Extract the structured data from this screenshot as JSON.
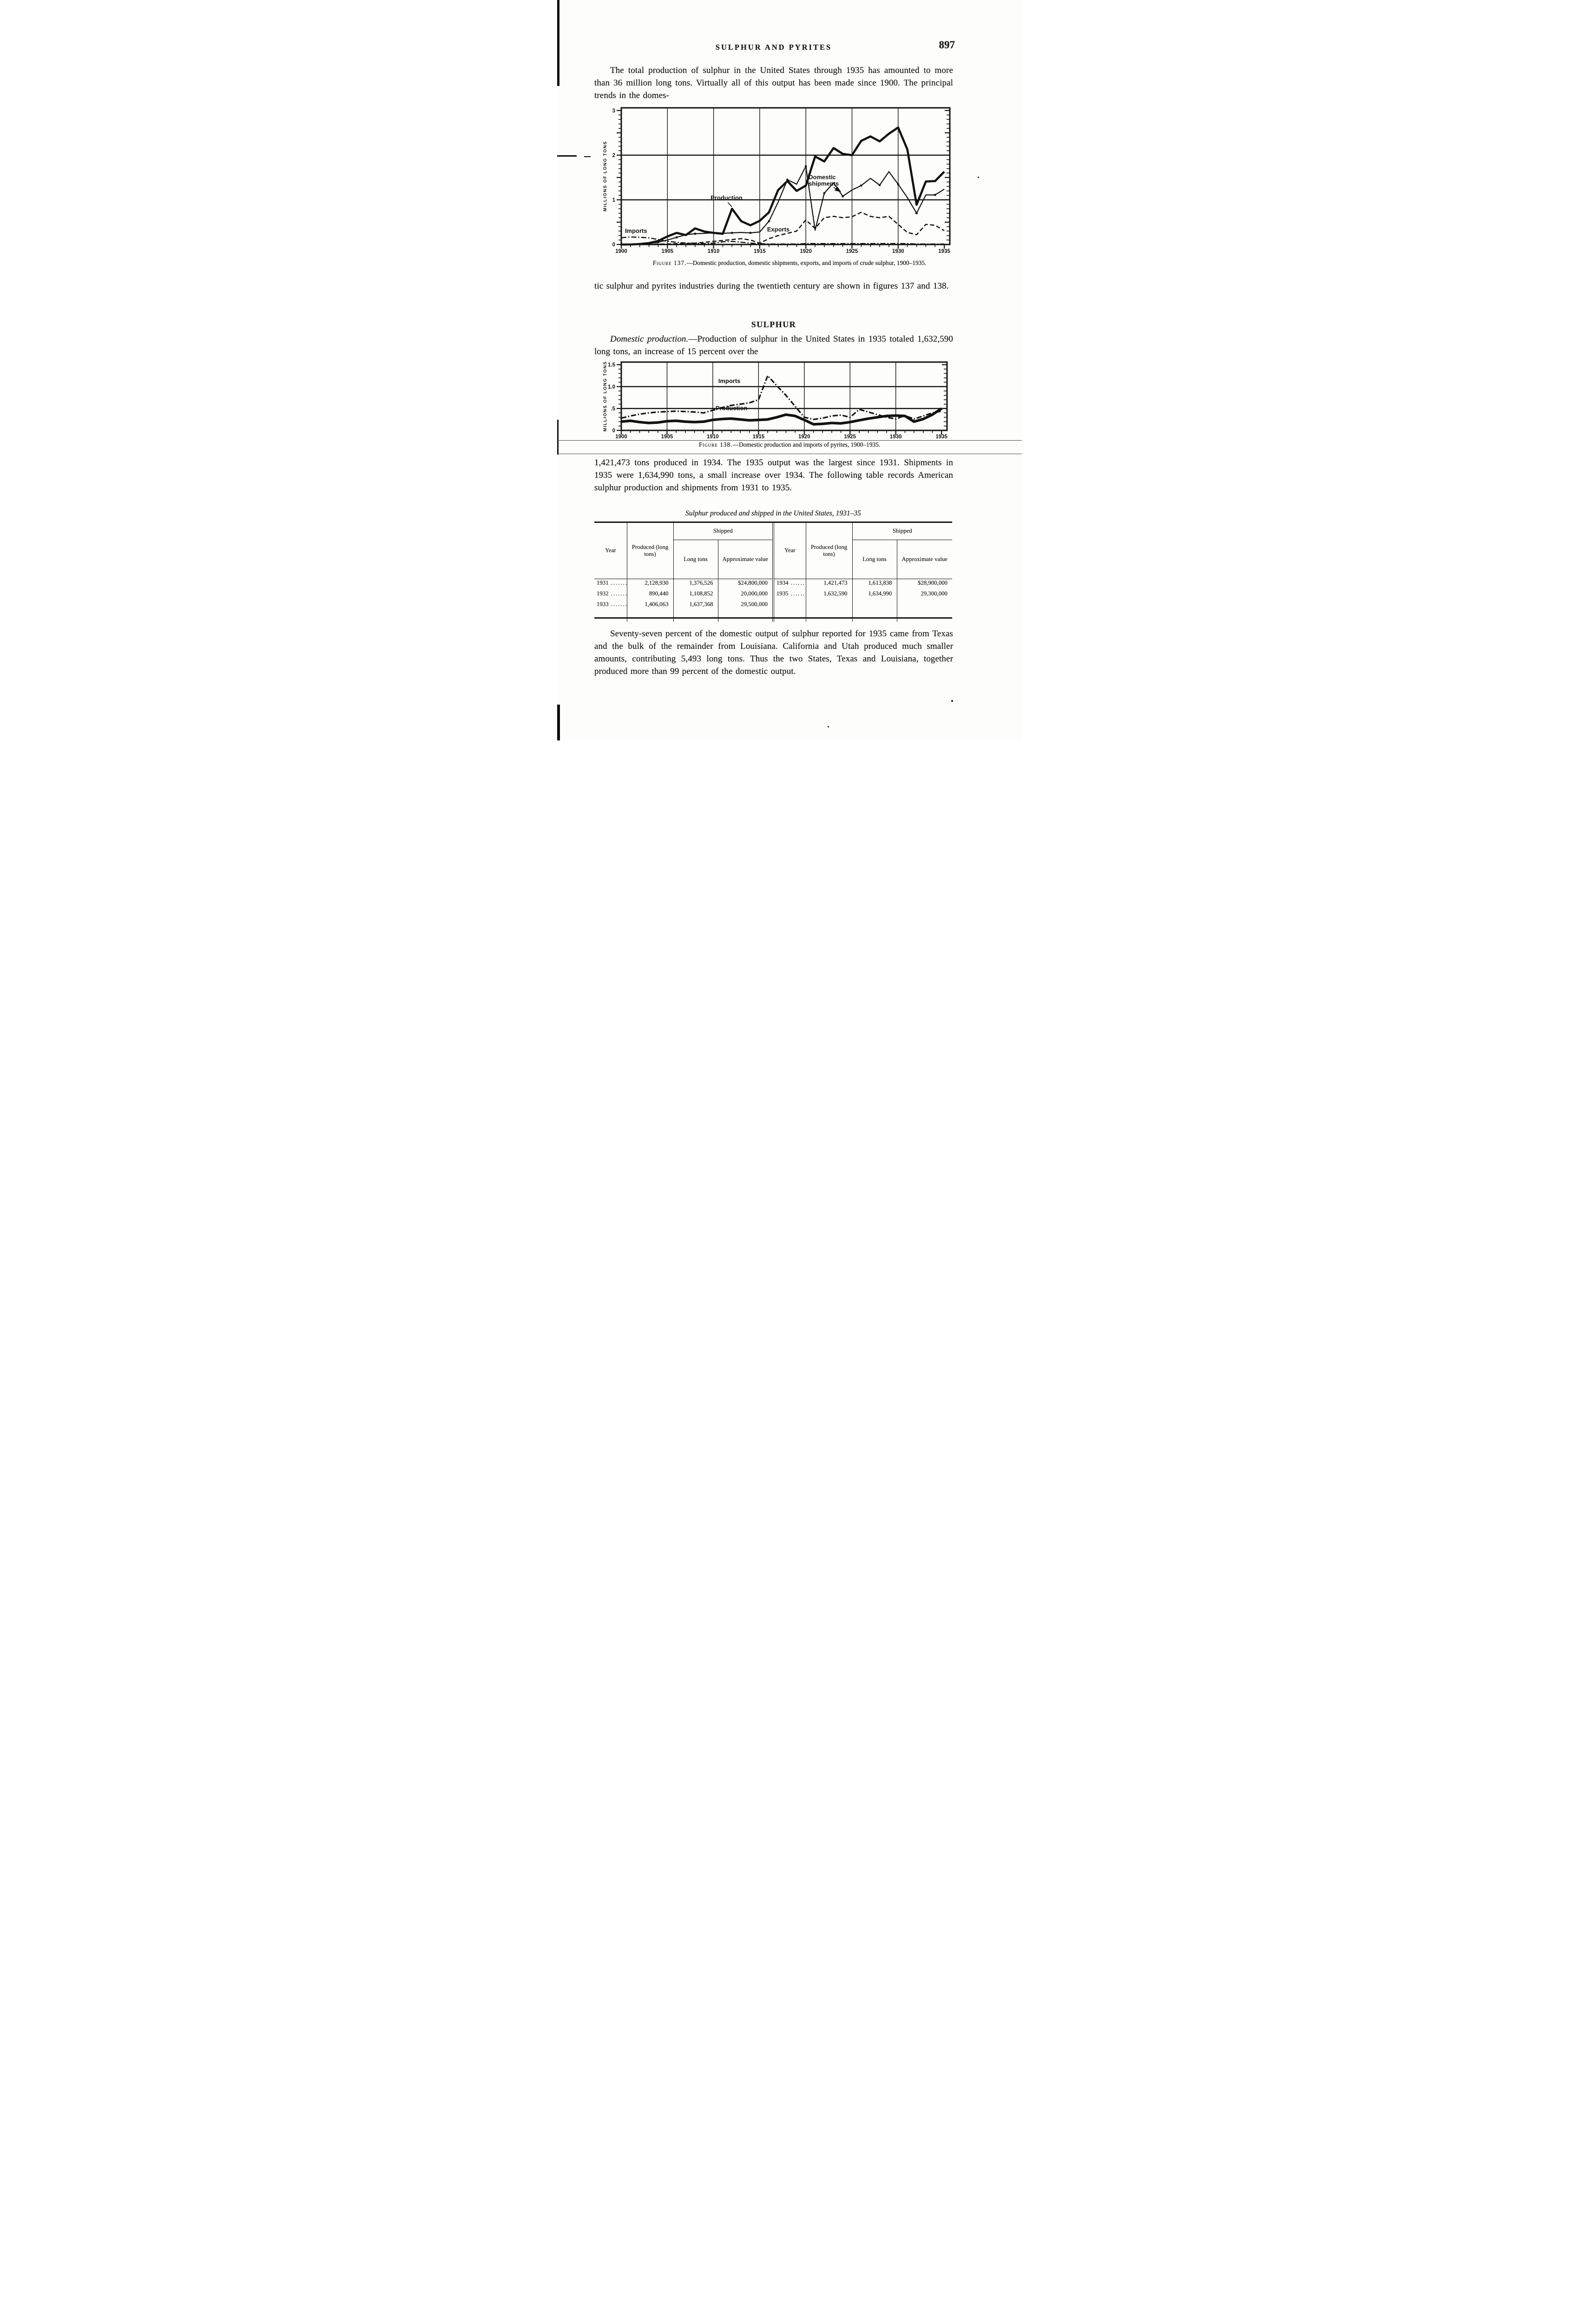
{
  "header": {
    "title": "SULPHUR AND PYRITES",
    "page_number": "897"
  },
  "paragraphs": {
    "p1": "The total production of sulphur in the United States through 1935 has amounted to more than 36 million long tons. Virtually all of this output has been made since 1900. The principal trends in the domes-",
    "p2": "tic sulphur and pyrites industries during the twentieth century are shown in figures 137 and 138.",
    "section_heading": "SULPHUR",
    "p3_lead": "Domestic production.",
    "p3_rest": "—Production of sulphur in the United States in 1935 totaled 1,632,590 long tons, an increase of 15 percent over the",
    "p4": "1,421,473 tons produced in 1934. The 1935 output was the largest since 1931. Shipments in 1935 were 1,634,990 tons, a small increase over 1934. The following table records American sulphur production and shipments from 1931 to 1935.",
    "p5": "Seventy-seven percent of the domestic output of sulphur reported for 1935 came from Texas and the bulk of the remainder from Louisiana. California and Utah produced much smaller amounts, contributing 5,493 long tons. Thus the two States, Texas and Louisiana, together produced more than 99 percent of the domestic output."
  },
  "figures": {
    "fig137": {
      "caption_label": "Figure 137.",
      "caption_text": "—Domestic production, domestic shipments, exports, and imports of crude sulphur, 1900–1935."
    },
    "fig138": {
      "caption_label": "Figure 138.",
      "caption_text": "—Domestic production and imports of pyrites, 1900–1935."
    }
  },
  "table": {
    "title": "Sulphur produced and shipped in the United States, 1931–35",
    "headers": {
      "year": "Year",
      "produced": "Produced (long tons)",
      "shipped": "Shipped",
      "long_tons": "Long tons",
      "approx_value": "Approxi­mate value"
    },
    "left_rows": [
      [
        "1931",
        "2,128,930",
        "1,376,526",
        "$24,800,000"
      ],
      [
        "1932",
        "890,440",
        "1,108,852",
        "20,000,000"
      ],
      [
        "1933",
        "1,406,063",
        "1,637,368",
        "29,500,000"
      ]
    ],
    "right_rows": [
      [
        "1934",
        "1,421,473",
        "1,613,838",
        "$28,900,000"
      ],
      [
        "1935",
        "1,632,590",
        "1,634,990",
        "29,300,000"
      ]
    ]
  },
  "chart_data": [
    {
      "type": "line",
      "title": "Domestic production, domestic shipments, exports, and imports of crude sulphur, 1900-1935",
      "xlabel": "",
      "ylabel": "MILLIONS OF LONG TONS",
      "xlim": [
        1900,
        1935.6
      ],
      "ylim": [
        0,
        3.06
      ],
      "x": [
        1900,
        1901,
        1902,
        1903,
        1904,
        1905,
        1906,
        1907,
        1908,
        1909,
        1910,
        1911,
        1912,
        1913,
        1914,
        1915,
        1916,
        1917,
        1918,
        1919,
        1920,
        1921,
        1922,
        1923,
        1924,
        1925,
        1926,
        1927,
        1928,
        1929,
        1930,
        1931,
        1932,
        1933,
        1934,
        1935
      ],
      "xticks": [
        1900,
        1905,
        1910,
        1915,
        1920,
        1925,
        1930,
        1935
      ],
      "yticks": [
        0,
        1,
        2,
        3
      ],
      "ytick_labels": [
        "0",
        "1",
        "2",
        "3"
      ],
      "grid_x": [
        1905,
        1910,
        1915,
        1920,
        1925,
        1930
      ],
      "grid_y": [
        1,
        2
      ],
      "minor_y_step": 0.1,
      "series": [
        {
          "name": "Production",
          "style": "thick",
          "values": [
            0.0,
            0.0,
            0.01,
            0.03,
            0.08,
            0.18,
            0.26,
            0.21,
            0.36,
            0.29,
            0.26,
            0.24,
            0.8,
            0.52,
            0.43,
            0.53,
            0.72,
            1.22,
            1.42,
            1.2,
            1.32,
            1.97,
            1.86,
            2.16,
            2.03,
            2.0,
            2.32,
            2.42,
            2.31,
            2.48,
            2.62,
            2.13,
            0.89,
            1.41,
            1.42,
            1.63
          ]
        },
        {
          "name": "Domestic shipments",
          "style": "dots",
          "values": [
            0.0,
            0.0,
            0.01,
            0.02,
            0.05,
            0.1,
            0.16,
            0.22,
            0.24,
            0.25,
            0.26,
            0.25,
            0.26,
            0.27,
            0.26,
            0.28,
            0.52,
            0.95,
            1.45,
            1.35,
            1.75,
            0.32,
            1.15,
            1.38,
            1.08,
            1.22,
            1.32,
            1.48,
            1.33,
            1.63,
            1.35,
            1.05,
            0.7,
            1.11,
            1.11,
            1.24
          ]
        },
        {
          "name": "Exports",
          "style": "dashed",
          "values": [
            0.0,
            0.0,
            0.0,
            0.0,
            0.01,
            0.01,
            0.02,
            0.02,
            0.03,
            0.05,
            0.07,
            0.09,
            0.11,
            0.13,
            0.1,
            0.03,
            0.13,
            0.2,
            0.25,
            0.3,
            0.55,
            0.36,
            0.6,
            0.63,
            0.6,
            0.62,
            0.72,
            0.63,
            0.6,
            0.63,
            0.45,
            0.27,
            0.22,
            0.45,
            0.43,
            0.31
          ]
        },
        {
          "name": "Imports",
          "style": "dashdot",
          "values": [
            0.15,
            0.17,
            0.16,
            0.15,
            0.11,
            0.07,
            0.05,
            0.03,
            0.03,
            0.02,
            0.03,
            0.06,
            0.07,
            0.05,
            0.03,
            0.02,
            0.01,
            0.01,
            0.01,
            0.01,
            0.02,
            0.02,
            0.02,
            0.02,
            0.02,
            0.02,
            0.02,
            0.02,
            0.02,
            0.02,
            0.02,
            0.02,
            0.01,
            0.01,
            0.01,
            0.01
          ]
        }
      ],
      "labels": [
        {
          "text": [
            "Imports"
          ],
          "x": 1900.4,
          "y": 0.26,
          "anchor": "start"
        },
        {
          "text": [
            "Production"
          ],
          "x": 1911.4,
          "y": 1.0,
          "anchor": "middle"
        },
        {
          "text": [
            "Exports"
          ],
          "x": 1915.8,
          "y": 0.29,
          "anchor": "start"
        },
        {
          "text": [
            "Domestic",
            "shipments"
          ],
          "x": 1920.3,
          "y": 1.46,
          "anchor": "start"
        }
      ],
      "arrows": [
        {
          "path": [
            [
              1911.55,
              0.94
            ],
            [
              1911.78,
              0.89
            ],
            [
              1911.98,
              0.845
            ]
          ],
          "head": false
        },
        {
          "path": [
            [
              1923.0,
              1.28
            ],
            [
              1923.5,
              1.22
            ],
            [
              1923.75,
              1.185
            ]
          ],
          "head": true
        }
      ]
    },
    {
      "type": "line",
      "title": "Domestic production and imports of pyrites, 1900-1935",
      "xlabel": "",
      "ylabel": "MILLIONS OF LONG TONS",
      "xlim": [
        1900,
        1935.6
      ],
      "ylim": [
        0,
        1.56
      ],
      "x": [
        1900,
        1901,
        1902,
        1903,
        1904,
        1905,
        1906,
        1907,
        1908,
        1909,
        1910,
        1911,
        1912,
        1913,
        1914,
        1915,
        1916,
        1917,
        1918,
        1919,
        1920,
        1921,
        1922,
        1923,
        1924,
        1925,
        1926,
        1927,
        1928,
        1929,
        1930,
        1931,
        1932,
        1933,
        1934,
        1935
      ],
      "xticks": [
        1900,
        1905,
        1910,
        1915,
        1920,
        1925,
        1930,
        1935
      ],
      "yticks": [
        0,
        0.5,
        1,
        1.5
      ],
      "ytick_labels": [
        "0",
        ".5",
        "1.0",
        "1.5"
      ],
      "grid_x": [
        1905,
        1910,
        1915,
        1920,
        1925,
        1930
      ],
      "grid_y": [
        0.5,
        1
      ],
      "minor_y_step": 0.1,
      "series": [
        {
          "name": "Imports",
          "style": "dashdot",
          "values": [
            0.28,
            0.33,
            0.37,
            0.4,
            0.42,
            0.43,
            0.44,
            0.43,
            0.42,
            0.4,
            0.46,
            0.52,
            0.57,
            0.6,
            0.63,
            0.7,
            1.25,
            1.02,
            0.8,
            0.55,
            0.3,
            0.25,
            0.28,
            0.33,
            0.35,
            0.3,
            0.48,
            0.42,
            0.36,
            0.3,
            0.26,
            0.34,
            0.26,
            0.33,
            0.4,
            0.44
          ]
        },
        {
          "name": "Production",
          "style": "thick",
          "values": [
            0.2,
            0.22,
            0.19,
            0.17,
            0.18,
            0.21,
            0.22,
            0.2,
            0.19,
            0.2,
            0.24,
            0.26,
            0.27,
            0.25,
            0.23,
            0.24,
            0.25,
            0.3,
            0.36,
            0.33,
            0.24,
            0.14,
            0.15,
            0.17,
            0.16,
            0.19,
            0.23,
            0.27,
            0.3,
            0.33,
            0.34,
            0.33,
            0.2,
            0.26,
            0.36,
            0.5
          ]
        }
      ],
      "labels": [
        {
          "text": [
            "Imports"
          ],
          "x": 1910.6,
          "y": 1.08,
          "anchor": "start"
        },
        {
          "text": [
            "Production"
          ],
          "x": 1910.3,
          "y": 0.46,
          "anchor": "start"
        }
      ],
      "arrows": []
    }
  ]
}
